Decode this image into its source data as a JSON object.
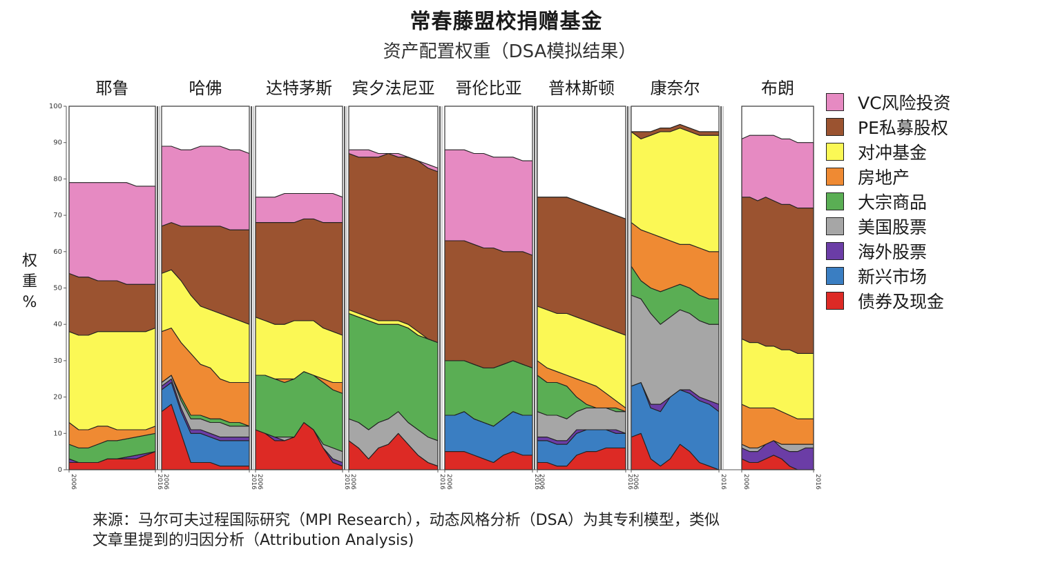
{
  "title": "常春藤盟校捐赠基金",
  "subtitle": "资产配置权重（DSA模拟结果）",
  "source_lines": [
    "来源：马尔可夫过程国际研究（MPI Research），动态风格分析（DSA）为其专利模型，类似",
    "文章里提到的归因分析（Attribution Analysis)"
  ],
  "chart_data": {
    "type": "area",
    "stacking": "percent",
    "ylabel": "权重%",
    "ylabel_chars": [
      "权",
      "重",
      "%"
    ],
    "ylim": [
      0,
      100
    ],
    "yticks": [
      0,
      10,
      20,
      30,
      40,
      50,
      60,
      70,
      80,
      90,
      100
    ],
    "grid": false,
    "legend_position": "right",
    "x_tick_labels": [
      "2006",
      "2016"
    ],
    "series": [
      {
        "name": "VC风险投资",
        "color": "#E68AC2"
      },
      {
        "name": "PE私募股权",
        "color": "#9B5330"
      },
      {
        "name": "对冲基金",
        "color": "#FBF855"
      },
      {
        "name": "房地产",
        "color": "#EF8A33"
      },
      {
        "name": "大宗商品",
        "color": "#5AAE54"
      },
      {
        "name": "美国股票",
        "color": "#A6A6A6"
      },
      {
        "name": "海外股票",
        "color": "#6B3DA6"
      },
      {
        "name": "新兴市场",
        "color": "#3A7EC2"
      },
      {
        "name": "债券及现金",
        "color": "#DD2A25"
      }
    ],
    "panels": [
      {
        "name": "耶鲁",
        "boundaries": [
          [
            2,
            2,
            2,
            2,
            3,
            3,
            3,
            3,
            4,
            5
          ],
          [
            2,
            2,
            2,
            2,
            3,
            3,
            3,
            3,
            4,
            5
          ],
          [
            3,
            2,
            2,
            2,
            3,
            3,
            3.5,
            4,
            4.5,
            5
          ],
          [
            3,
            2,
            2,
            2,
            3,
            3,
            3.5,
            4,
            4.5,
            5
          ],
          [
            7,
            6,
            6,
            7,
            8,
            8,
            8.5,
            9,
            9.5,
            10
          ],
          [
            13,
            11,
            11,
            12,
            12,
            11,
            11,
            11,
            11,
            12
          ],
          [
            38,
            37,
            37,
            38,
            38,
            38,
            38,
            38,
            38,
            39
          ],
          [
            54,
            53,
            53,
            52,
            52,
            52,
            51,
            51,
            51,
            51
          ],
          [
            79,
            79,
            79,
            79,
            79,
            79,
            79,
            78,
            78,
            78
          ]
        ]
      },
      {
        "name": "哈佛",
        "boundaries": [
          [
            16,
            18,
            10,
            2,
            2,
            2,
            1,
            1,
            1,
            1
          ],
          [
            22,
            24,
            16,
            10,
            10,
            9,
            8,
            8,
            8,
            8
          ],
          [
            23,
            25,
            17,
            11,
            11,
            10,
            9,
            9,
            9,
            9
          ],
          [
            24,
            26,
            19,
            14,
            14,
            13,
            13,
            12,
            12,
            12
          ],
          [
            24,
            26,
            20,
            15,
            15,
            14,
            14,
            13,
            13,
            12
          ],
          [
            38,
            39,
            35,
            32,
            29,
            28,
            25,
            24,
            24,
            24
          ],
          [
            54,
            55,
            52,
            48,
            45,
            44,
            43,
            42,
            41,
            40
          ],
          [
            67,
            68,
            67,
            67,
            67,
            67,
            67,
            66,
            66,
            66
          ],
          [
            89,
            89,
            88,
            88,
            89,
            89,
            89,
            88,
            88,
            87
          ]
        ]
      },
      {
        "name": "达特茅斯",
        "boundaries": [
          [
            11,
            10,
            8,
            8,
            9,
            13,
            11,
            6,
            2,
            1
          ],
          [
            11,
            10,
            8,
            8,
            9,
            13,
            11,
            6,
            2,
            1
          ],
          [
            11,
            10,
            9,
            8,
            9,
            13,
            11,
            6,
            3,
            2
          ],
          [
            11,
            10,
            9,
            9,
            9,
            13,
            11,
            7,
            6,
            5
          ],
          [
            26,
            26,
            25,
            24,
            25,
            27,
            26,
            24,
            22,
            21
          ],
          [
            26,
            26,
            25,
            25,
            25,
            27,
            26,
            25,
            24,
            24
          ],
          [
            42,
            41,
            40,
            40,
            41,
            41,
            41,
            39,
            38,
            37
          ],
          [
            68,
            68,
            68,
            68,
            68,
            69,
            69,
            68,
            68,
            68
          ],
          [
            75,
            75,
            75,
            76,
            76,
            76,
            76,
            76,
            76,
            75
          ]
        ]
      },
      {
        "name": "宾夕法尼亚",
        "boundaries": [
          [
            8,
            6,
            3,
            6,
            7,
            10,
            7,
            4,
            2,
            1
          ],
          [
            8,
            6,
            3,
            6,
            7,
            10,
            7,
            4,
            2,
            1
          ],
          [
            8,
            6,
            3,
            6,
            7,
            10,
            7,
            4,
            2,
            1
          ],
          [
            14,
            13,
            11,
            13,
            14,
            16,
            13,
            11,
            9,
            8
          ],
          [
            43,
            42,
            41,
            40,
            40,
            40,
            39,
            37,
            36,
            35
          ],
          [
            43,
            42,
            41,
            40,
            40,
            40,
            39,
            37,
            36,
            35
          ],
          [
            44,
            43,
            42,
            41,
            41,
            41,
            40,
            38,
            36,
            35
          ],
          [
            87,
            86,
            86,
            86,
            87,
            86,
            86,
            85,
            83,
            82
          ],
          [
            88,
            88,
            88,
            87,
            87,
            87,
            86,
            85,
            84,
            83
          ]
        ]
      },
      {
        "name": "哥伦比亚",
        "boundaries": [
          [
            5,
            5,
            5,
            4,
            3,
            2,
            4,
            5,
            4,
            4
          ],
          [
            15,
            15,
            16,
            14,
            13,
            12,
            14,
            16,
            15,
            15
          ],
          [
            15,
            15,
            16,
            14,
            13,
            12,
            14,
            16,
            15,
            15
          ],
          [
            15,
            15,
            16,
            14,
            13,
            12,
            14,
            16,
            15,
            15
          ],
          [
            30,
            30,
            30,
            29,
            28,
            28,
            29,
            30,
            29,
            28
          ],
          [
            30,
            30,
            30,
            29,
            28,
            28,
            29,
            30,
            29,
            28
          ],
          [
            30,
            30,
            30,
            29,
            28,
            28,
            29,
            30,
            29,
            28
          ],
          [
            63,
            63,
            63,
            62,
            61,
            61,
            60,
            60,
            60,
            59
          ],
          [
            88,
            88,
            88,
            87,
            87,
            86,
            86,
            86,
            85,
            85
          ]
        ]
      },
      {
        "name": "普林斯顿",
        "boundaries": [
          [
            2,
            2,
            1,
            1,
            4,
            5,
            5,
            6,
            6,
            6
          ],
          [
            8,
            8,
            7,
            7,
            10,
            11,
            11,
            11,
            10,
            10
          ],
          [
            9,
            9,
            8,
            8,
            11,
            11,
            11,
            11,
            11,
            10
          ],
          [
            16,
            15,
            15,
            14,
            16,
            17,
            17,
            17,
            16,
            16
          ],
          [
            26,
            24,
            24,
            23,
            20,
            18,
            17,
            17,
            17,
            16
          ],
          [
            30,
            28,
            27,
            26,
            25,
            24,
            23,
            21,
            19,
            17
          ],
          [
            45,
            44,
            43,
            43,
            42,
            41,
            40,
            39,
            38,
            37
          ],
          [
            75,
            75,
            75,
            75,
            74,
            73,
            72,
            71,
            70,
            69
          ],
          [
            75,
            75,
            75,
            75,
            74,
            73,
            72,
            71,
            70,
            69
          ]
        ]
      },
      {
        "name": "康奈尔",
        "boundaries": [
          [
            9,
            10,
            3,
            1,
            3,
            7,
            5,
            2,
            1,
            0
          ],
          [
            23,
            24,
            17,
            16,
            20,
            22,
            21,
            19,
            18,
            16
          ],
          [
            23,
            24,
            18,
            18,
            20,
            22,
            22,
            20,
            19,
            18
          ],
          [
            48,
            47,
            43,
            40,
            42,
            44,
            43,
            41,
            40,
            40
          ],
          [
            56,
            52,
            50,
            49,
            50,
            51,
            50,
            48,
            47,
            47
          ],
          [
            68,
            66,
            65,
            64,
            63,
            62,
            62,
            61,
            60,
            60
          ],
          [
            93,
            91,
            92,
            93,
            93,
            94,
            93,
            92,
            92,
            92
          ],
          [
            93,
            93,
            93,
            94,
            94,
            95,
            94,
            93,
            93,
            93
          ],
          [
            93,
            93,
            93,
            94,
            94,
            95,
            94,
            93,
            93,
            93
          ]
        ]
      },
      {
        "name": "布朗",
        "boundaries": [
          [
            3,
            2,
            2,
            3,
            4,
            3,
            1,
            0,
            0,
            0
          ],
          [
            3,
            2,
            2,
            3,
            4,
            3,
            1,
            0,
            0,
            0
          ],
          [
            6,
            5,
            5,
            7,
            8,
            6,
            5,
            5,
            6,
            6
          ],
          [
            7,
            6,
            6,
            7,
            8,
            7,
            7,
            7,
            7,
            7
          ],
          [
            7,
            6,
            6,
            7,
            8,
            7,
            7,
            7,
            7,
            7
          ],
          [
            18,
            17,
            17,
            17,
            17,
            16,
            15,
            14,
            14,
            14
          ],
          [
            36,
            35,
            35,
            34,
            34,
            33,
            33,
            32,
            32,
            32
          ],
          [
            75,
            75,
            74,
            75,
            74,
            73,
            73,
            72,
            72,
            72
          ],
          [
            91,
            92,
            92,
            92,
            92,
            91,
            91,
            90,
            90,
            90
          ]
        ]
      }
    ]
  }
}
